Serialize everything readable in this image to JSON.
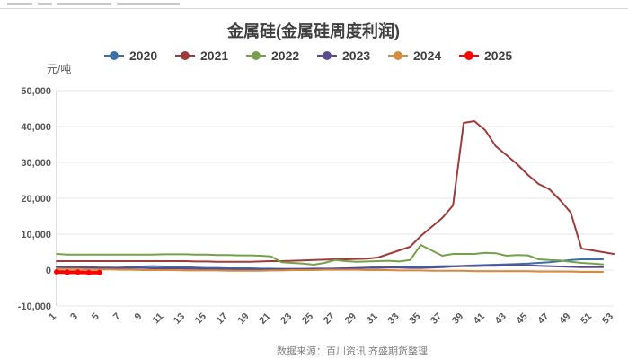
{
  "title": "金属硅(金属硅周度利润)",
  "source": "数据来源：百川资讯,齐盛期货整理",
  "chart_data": {
    "type": "line",
    "title": "金属硅(金属硅周度利润)",
    "ylabel": "元/吨",
    "xlabel": "",
    "ylim": [
      -10000,
      50000
    ],
    "xlim": [
      1,
      53
    ],
    "yticks": [
      -10000,
      0,
      10000,
      20000,
      30000,
      40000,
      50000
    ],
    "ytick_labels": [
      "-10,000",
      "0",
      "10,000",
      "20,000",
      "30,000",
      "40,000",
      "50,000"
    ],
    "xticks": [
      1,
      3,
      5,
      7,
      9,
      11,
      13,
      15,
      17,
      19,
      21,
      23,
      25,
      27,
      29,
      31,
      33,
      35,
      37,
      39,
      41,
      43,
      45,
      47,
      49,
      51,
      53
    ],
    "legend_position": "top",
    "grid": "horizontal",
    "series": [
      {
        "name": "2020",
        "color": "#3a6fa8",
        "x": [
          1,
          2,
          3,
          4,
          5,
          6,
          7,
          8,
          9,
          10,
          11,
          12,
          13,
          14,
          15,
          16,
          17,
          18,
          19,
          20,
          21,
          22,
          23,
          24,
          25,
          26,
          27,
          28,
          29,
          30,
          31,
          32,
          33,
          34,
          35,
          36,
          37,
          38,
          39,
          40,
          41,
          42,
          43,
          44,
          45,
          46,
          47,
          48,
          49,
          50,
          51,
          52
        ],
        "y": [
          800,
          700,
          600,
          500,
          500,
          600,
          700,
          800,
          1000,
          1100,
          1000,
          900,
          800,
          700,
          600,
          600,
          500,
          500,
          500,
          400,
          400,
          300,
          300,
          300,
          300,
          300,
          400,
          500,
          600,
          700,
          800,
          800,
          900,
          900,
          1000,
          1000,
          1100,
          1100,
          1200,
          1300,
          1400,
          1500,
          1600,
          1700,
          1800,
          2000,
          2200,
          2500,
          2800,
          3000,
          3000,
          3000
        ]
      },
      {
        "name": "2021",
        "color": "#9e3b3b",
        "x": [
          1,
          2,
          3,
          4,
          5,
          6,
          7,
          8,
          9,
          10,
          11,
          12,
          13,
          14,
          15,
          16,
          17,
          18,
          19,
          20,
          21,
          22,
          23,
          24,
          25,
          26,
          27,
          28,
          29,
          30,
          31,
          32,
          33,
          34,
          35,
          36,
          37,
          38,
          39,
          40,
          41,
          42,
          43,
          44,
          45,
          46,
          47,
          48,
          49,
          50,
          51,
          52,
          53
        ],
        "y": [
          2500,
          2500,
          2500,
          2500,
          2500,
          2500,
          2500,
          2500,
          2500,
          2500,
          2500,
          2500,
          2500,
          2400,
          2400,
          2300,
          2300,
          2300,
          2300,
          2400,
          2500,
          2500,
          2600,
          2700,
          2800,
          2900,
          3000,
          3000,
          3100,
          3200,
          3500,
          4500,
          5500,
          6500,
          9500,
          12000,
          14500,
          18000,
          41000,
          41500,
          39000,
          34500,
          32000,
          29500,
          26500,
          24000,
          22500,
          19500,
          16000,
          6000,
          5500,
          5000,
          4500
        ]
      },
      {
        "name": "2022",
        "color": "#76a04b",
        "x": [
          1,
          2,
          3,
          4,
          5,
          6,
          7,
          8,
          9,
          10,
          11,
          12,
          13,
          14,
          15,
          16,
          17,
          18,
          19,
          20,
          21,
          22,
          23,
          24,
          25,
          26,
          27,
          28,
          29,
          30,
          31,
          32,
          33,
          34,
          35,
          36,
          37,
          38,
          39,
          40,
          41,
          42,
          43,
          44,
          45,
          46,
          47,
          48,
          49,
          50,
          51,
          52
        ],
        "y": [
          4500,
          4300,
          4300,
          4300,
          4300,
          4300,
          4300,
          4300,
          4300,
          4300,
          4400,
          4400,
          4400,
          4300,
          4300,
          4200,
          4200,
          4100,
          4100,
          4000,
          3800,
          2200,
          2000,
          1800,
          1500,
          2000,
          2800,
          2500,
          2300,
          2400,
          2500,
          2600,
          2400,
          2800,
          7000,
          5500,
          4000,
          4500,
          4500,
          4500,
          4800,
          4700,
          4000,
          4200,
          4100,
          3000,
          2800,
          2700,
          2300,
          2000,
          1800,
          1600
        ]
      },
      {
        "name": "2023",
        "color": "#5b4a8e",
        "x": [
          1,
          2,
          3,
          4,
          5,
          6,
          7,
          8,
          9,
          10,
          11,
          12,
          13,
          14,
          15,
          16,
          17,
          18,
          19,
          20,
          21,
          22,
          23,
          24,
          25,
          26,
          27,
          28,
          29,
          30,
          31,
          32,
          33,
          34,
          35,
          36,
          37,
          38,
          39,
          40,
          41,
          42,
          43,
          44,
          45,
          46,
          47,
          48,
          49,
          50,
          51,
          52
        ],
        "y": [
          1000,
          900,
          800,
          800,
          700,
          700,
          600,
          600,
          600,
          500,
          500,
          500,
          400,
          400,
          300,
          300,
          300,
          200,
          200,
          200,
          200,
          300,
          300,
          300,
          400,
          400,
          400,
          500,
          500,
          600,
          600,
          700,
          700,
          600,
          600,
          700,
          800,
          1000,
          1100,
          1100,
          1200,
          1200,
          1300,
          1300,
          1300,
          1200,
          1100,
          1000,
          900,
          800,
          800,
          800
        ]
      },
      {
        "name": "2024",
        "color": "#d58a3c",
        "x": [
          1,
          2,
          3,
          4,
          5,
          6,
          7,
          8,
          9,
          10,
          11,
          12,
          13,
          14,
          15,
          16,
          17,
          18,
          19,
          20,
          21,
          22,
          23,
          24,
          25,
          26,
          27,
          28,
          29,
          30,
          31,
          32,
          33,
          34,
          35,
          36,
          37,
          38,
          39,
          40,
          41,
          42,
          43,
          44,
          45,
          46,
          47,
          48,
          49,
          50,
          51,
          52
        ],
        "y": [
          300,
          300,
          300,
          200,
          200,
          200,
          100,
          100,
          0,
          0,
          0,
          0,
          -100,
          -100,
          -100,
          -100,
          -200,
          -200,
          -200,
          -200,
          -100,
          -100,
          0,
          0,
          0,
          100,
          100,
          100,
          100,
          0,
          0,
          0,
          -100,
          -100,
          -100,
          -200,
          -200,
          -200,
          -200,
          -300,
          -300,
          -300,
          -300,
          -300,
          -300,
          -400,
          -400,
          -400,
          -400,
          -500,
          -500,
          -500
        ]
      },
      {
        "name": "2025",
        "color": "#ff0000",
        "x": [
          1,
          2,
          3,
          4,
          5
        ],
        "y": [
          -500,
          -600,
          -600,
          -700,
          -700
        ]
      }
    ]
  }
}
